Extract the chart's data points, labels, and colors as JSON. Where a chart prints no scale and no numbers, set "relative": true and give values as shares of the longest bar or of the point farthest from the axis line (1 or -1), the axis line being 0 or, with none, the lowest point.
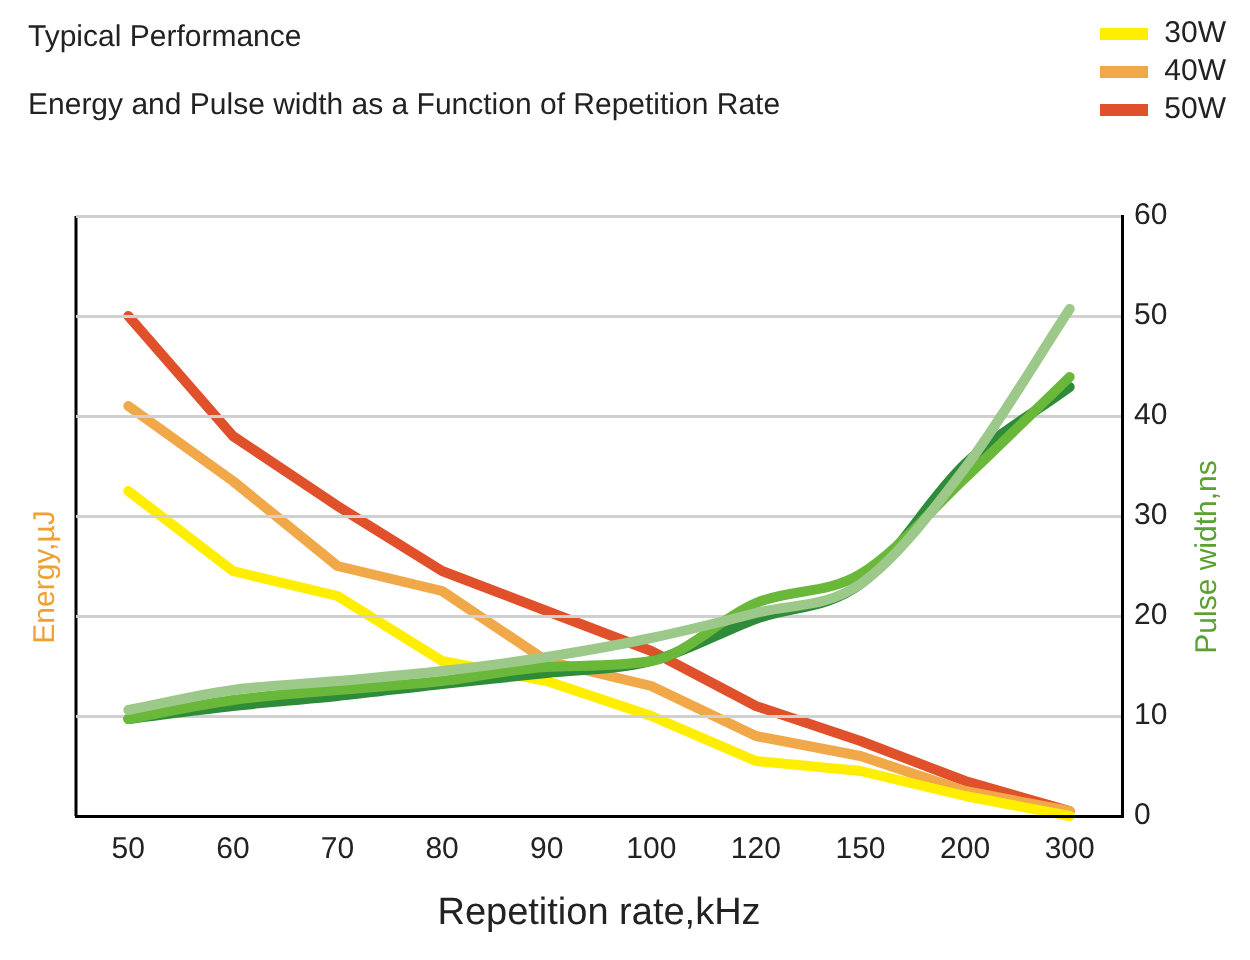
{
  "chart_data": [
    {
      "type": "line",
      "ylabel": "Energy,µJ",
      "relative": true,
      "tick_labels": false,
      "categories": [
        "50",
        "60",
        "70",
        "80",
        "90",
        "100",
        "120",
        "150",
        "200",
        "300"
      ],
      "series": [
        {
          "name": "30W",
          "color": "#ffee00",
          "values": [
            0.65,
            0.49,
            0.44,
            0.31,
            0.27,
            0.2,
            0.11,
            0.09,
            0.04,
            0.0
          ]
        },
        {
          "name": "40W",
          "color": "#f0a848",
          "values": [
            0.82,
            0.67,
            0.5,
            0.45,
            0.31,
            0.26,
            0.16,
            0.12,
            0.05,
            0.01
          ]
        },
        {
          "name": "50W",
          "color": "#e0502a",
          "values": [
            1,
            0.76,
            0.62,
            0.49,
            0.41,
            0.33,
            0.22,
            0.15,
            0.07,
            0.01
          ]
        }
      ],
      "legend": "top right",
      "marker": "none",
      "line_style": "solid"
    },
    {
      "type": "line",
      "title": "Typical Performance",
      "subtitle": "Energy and Pulse width as a Function of Repetition Rate",
      "xlabel": "Repetition rate,kHz",
      "y2label": "Pulse width,ns",
      "categories": [
        "50",
        "60",
        "70",
        "80",
        "90",
        "100",
        "120",
        "150",
        "200",
        "300"
      ],
      "series": [
        {
          "color": "#9cc98a",
          "axis": "y2",
          "values": [
            10.6,
            12.6,
            13.5,
            14.5,
            15.9,
            17.8,
            20.3,
            23.2,
            34.8,
            50.7
          ]
        },
        {
          "color": "#6ab83a",
          "axis": "y2",
          "values": [
            9.7,
            11.6,
            12.6,
            13.5,
            14.9,
            15.5,
            21.3,
            24.2,
            33.8,
            43.9
          ]
        },
        {
          "color": "#2e8b3a",
          "axis": "y2",
          "values": [
            9.7,
            11.0,
            12.0,
            13.2,
            14.3,
            15.5,
            19.7,
            23.2,
            35.2,
            42.9
          ]
        }
      ],
      "y2lim": [
        0,
        60
      ],
      "y2ticks": [
        0,
        10,
        20,
        30,
        40,
        50,
        60
      ],
      "grid": "y",
      "marker": "none",
      "line_style": "solid"
    }
  ]
}
